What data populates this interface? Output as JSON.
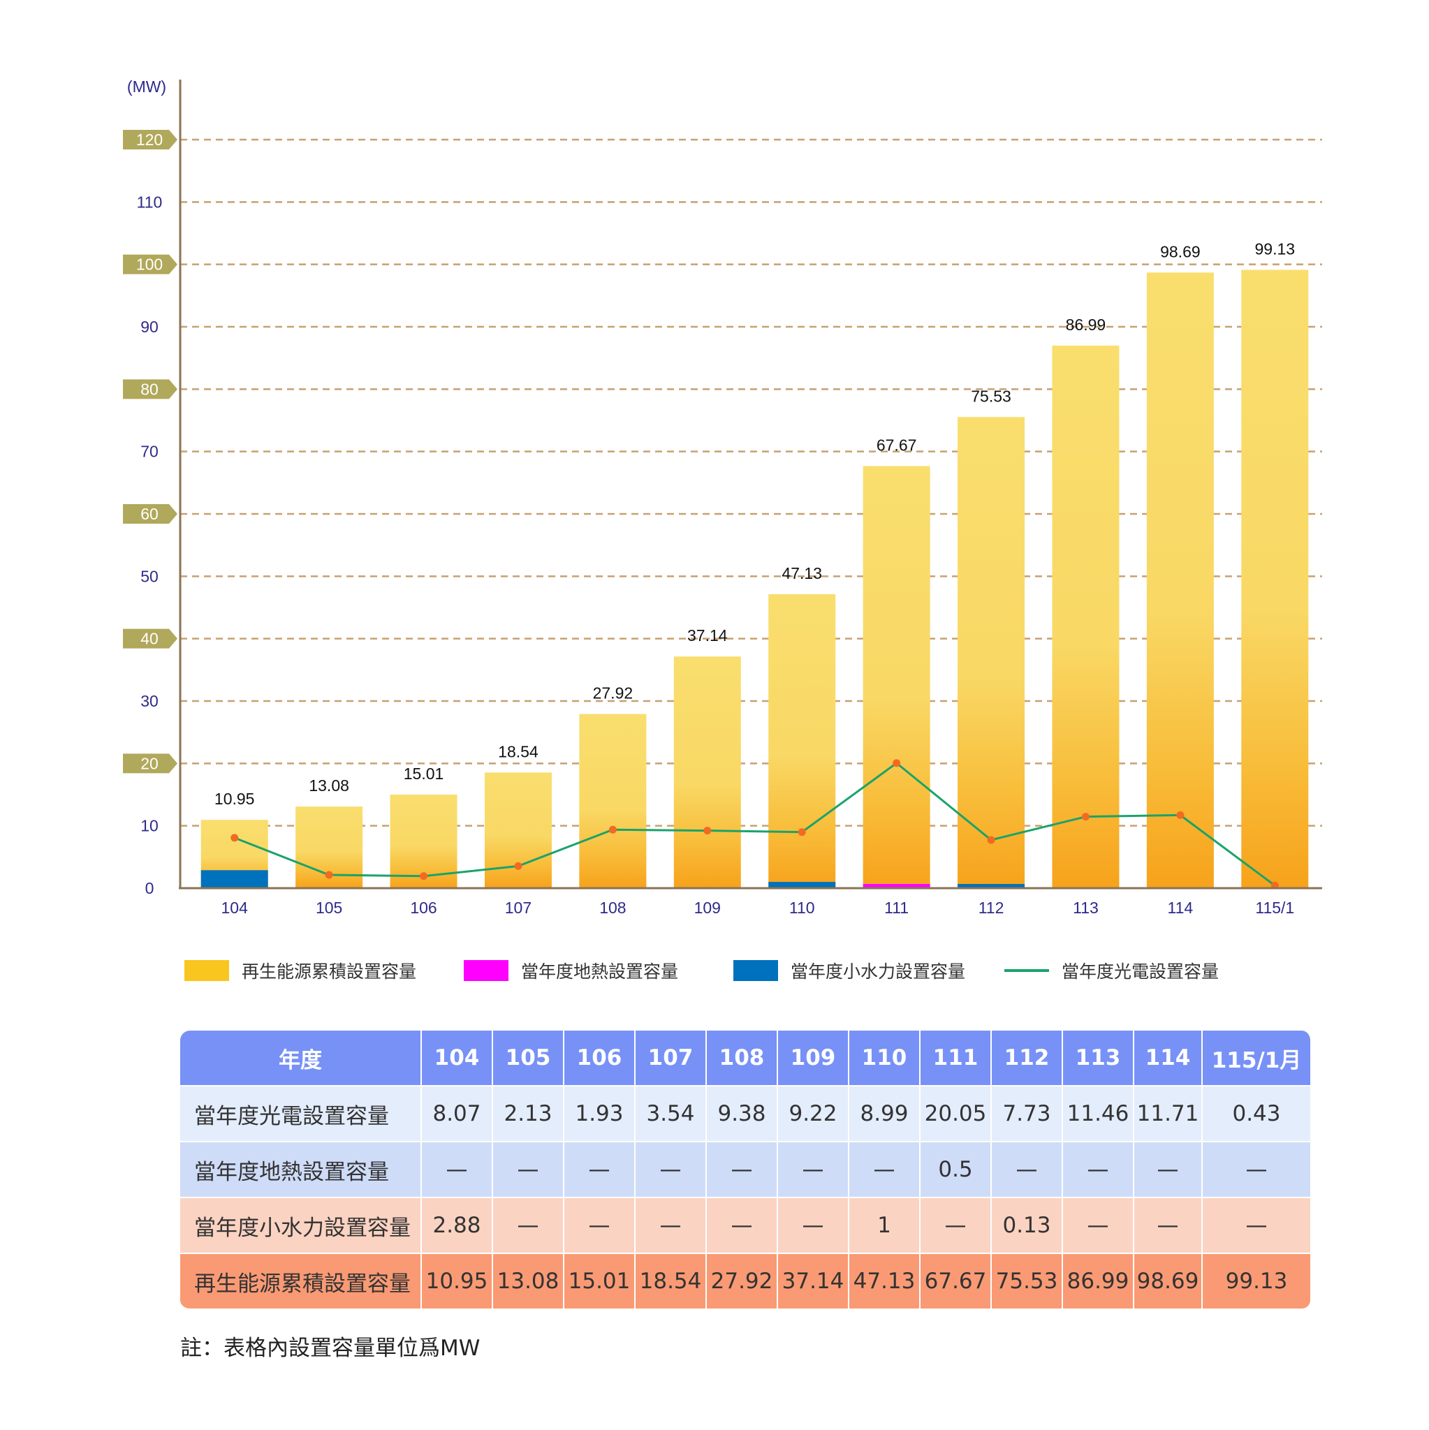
{
  "chart_data": {
    "type": "bar",
    "unit_label": "(MW)",
    "categories": [
      "104",
      "105",
      "106",
      "107",
      "108",
      "109",
      "110",
      "111",
      "112",
      "113",
      "114",
      "115/1"
    ],
    "ylim": [
      0,
      120
    ],
    "yticks": [
      0,
      10,
      20,
      30,
      40,
      50,
      60,
      70,
      80,
      90,
      100,
      110,
      120
    ],
    "highlighted_yticks": [
      20,
      40,
      60,
      80,
      100,
      120
    ],
    "grid": "dashed horizontal",
    "series": [
      {
        "name": "再生能源累積設置容量",
        "kind": "bar",
        "color": "#f9c51f",
        "values": [
          10.95,
          13.08,
          15.01,
          18.54,
          27.92,
          37.14,
          47.13,
          67.67,
          75.53,
          86.99,
          98.69,
          99.13
        ]
      },
      {
        "name": "當年度地熱設置容量",
        "kind": "bar-segment",
        "color": "#ff00ff",
        "values": [
          null,
          null,
          null,
          null,
          null,
          null,
          null,
          0.5,
          null,
          null,
          null,
          null
        ]
      },
      {
        "name": "當年度小水力設置容量",
        "kind": "bar-segment",
        "color": "#0071bc",
        "values": [
          2.88,
          null,
          null,
          null,
          null,
          null,
          1,
          null,
          0.13,
          null,
          null,
          null
        ]
      },
      {
        "name": "當年度光電設置容量",
        "kind": "line",
        "color": "#1aa36b",
        "marker_color": "#f26a22",
        "values": [
          8.07,
          2.13,
          1.93,
          3.54,
          9.38,
          9.22,
          8.99,
          20.05,
          7.73,
          11.46,
          11.71,
          0.43
        ]
      }
    ],
    "data_labels": [
      "10.95",
      "13.08",
      "15.01",
      "18.54",
      "27.92",
      "37.14",
      "47.13",
      "67.67",
      "75.53",
      "86.99",
      "98.69",
      "99.13"
    ],
    "legend_position": "bottom"
  },
  "legend": {
    "items": [
      {
        "label": "再生能源累積設置容量",
        "color": "#f9c51f",
        "style": "box"
      },
      {
        "label": "當年度地熱設置容量",
        "color": "#ff00ff",
        "style": "box"
      },
      {
        "label": "當年度小水力設置容量",
        "color": "#0071bc",
        "style": "box"
      },
      {
        "label": "當年度光電設置容量",
        "color": "#1aa36b",
        "style": "line"
      }
    ]
  },
  "table": {
    "header": [
      "年度",
      "104",
      "105",
      "106",
      "107",
      "108",
      "109",
      "110",
      "111",
      "112",
      "113",
      "114",
      "115/1月"
    ],
    "rows": [
      {
        "label": "當年度光電設置容量",
        "cells": [
          "8.07",
          "2.13",
          "1.93",
          "3.54",
          "9.38",
          "9.22",
          "8.99",
          "20.05",
          "7.73",
          "11.46",
          "11.71",
          "0.43"
        ]
      },
      {
        "label": "當年度地熱設置容量",
        "cells": [
          "—",
          "—",
          "—",
          "—",
          "—",
          "—",
          "—",
          "0.5",
          "—",
          "—",
          "—",
          "—"
        ]
      },
      {
        "label": "當年度小水力設置容量",
        "cells": [
          "2.88",
          "—",
          "—",
          "—",
          "—",
          "—",
          "1",
          "—",
          "0.13",
          "—",
          "—",
          "—"
        ]
      },
      {
        "label": "再生能源累積設置容量",
        "cells": [
          "10.95",
          "13.08",
          "15.01",
          "18.54",
          "27.92",
          "37.14",
          "47.13",
          "67.67",
          "75.53",
          "86.99",
          "98.69",
          "99.13"
        ]
      }
    ]
  },
  "note": "註：表格內設置容量單位爲MW",
  "colors": {
    "axis": "#8b7355",
    "grid": "#c8a070",
    "tick_text": "#2e2a8a",
    "tick_badge": "#b0a85a",
    "bar_top": "#f9de6e",
    "bar_bottom": "#f7a21b",
    "table_header": "#7891f7"
  }
}
